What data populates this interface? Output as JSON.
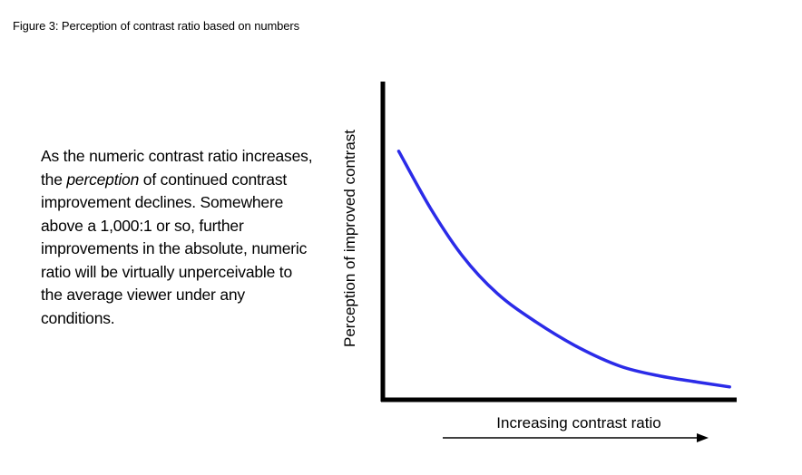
{
  "figure_caption": "Figure 3: Perception of contrast ratio based on numbers",
  "description": {
    "before": "As the numeric contrast ratio increases, the ",
    "italic": "perception",
    "after": " of continued contrast improvement declines. Somewhere above a 1,000:1 or so, further improvements in the absolute, numeric ratio will be virtually unperceivable to the average viewer under any conditions."
  },
  "chart_data": {
    "type": "line",
    "title": "",
    "xlabel": "Increasing contrast ratio",
    "ylabel": "Perception of improved contrast",
    "grid": false,
    "ticks": false,
    "x_direction_arrow": true,
    "xlim": [
      0,
      1
    ],
    "ylim": [
      0,
      1
    ],
    "series": [
      {
        "color": "#2b2be8",
        "x": [
          0.04,
          0.13,
          0.22,
          0.32,
          0.43,
          0.55,
          0.67,
          0.78,
          0.89,
          0.98
        ],
        "y": [
          0.78,
          0.6,
          0.45,
          0.33,
          0.24,
          0.16,
          0.1,
          0.07,
          0.05,
          0.035
        ]
      }
    ]
  }
}
